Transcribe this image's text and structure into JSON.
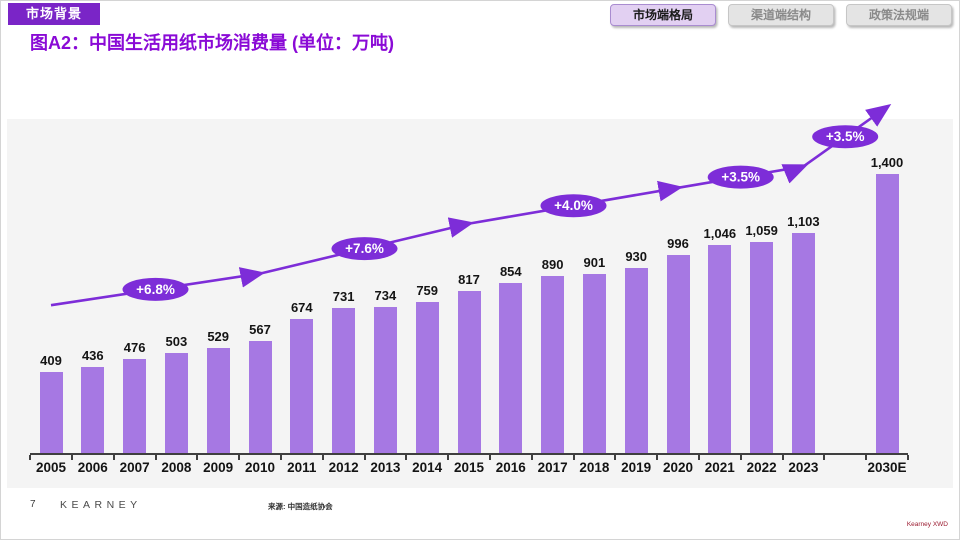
{
  "header": {
    "section_label": "市场背景",
    "tabs": [
      {
        "label": "市场端格局",
        "active": true
      },
      {
        "label": "渠道端结构",
        "active": false
      },
      {
        "label": "政策法规端",
        "active": false
      }
    ]
  },
  "title": "图A2：中国生活用纸市场消费量 (单位：万吨)",
  "chart_data": {
    "type": "bar",
    "title": "中国生活用纸市场消费量",
    "unit": "万吨",
    "categories": [
      "2005",
      "2006",
      "2007",
      "2008",
      "2009",
      "2010",
      "2011",
      "2012",
      "2013",
      "2014",
      "2015",
      "2016",
      "2017",
      "2018",
      "2019",
      "2020",
      "2021",
      "2022",
      "2023",
      "2030E"
    ],
    "values": [
      409,
      436,
      476,
      503,
      529,
      567,
      674,
      731,
      734,
      759,
      817,
      854,
      890,
      901,
      930,
      996,
      1046,
      1059,
      1103,
      1400
    ],
    "value_labels": [
      "409",
      "436",
      "476",
      "503",
      "529",
      "567",
      "674",
      "731",
      "734",
      "759",
      "817",
      "854",
      "890",
      "901",
      "930",
      "996",
      "1,046",
      "1,059",
      "1,103",
      "1,400"
    ],
    "ylim": [
      0,
      1500
    ],
    "grid": false,
    "legend": false,
    "growth_badges": [
      {
        "label": "+6.8%",
        "from": "2005",
        "to": "2010"
      },
      {
        "label": "+7.6%",
        "from": "2010",
        "to": "2015"
      },
      {
        "label": "+4.0%",
        "from": "2015",
        "to": "2020"
      },
      {
        "label": "+3.5%",
        "from": "2020",
        "to": "2023"
      },
      {
        "label": "+3.5%",
        "from": "2023",
        "to": "2030E"
      }
    ],
    "trend_milestones": [
      "2005",
      "2010",
      "2015",
      "2020",
      "2023",
      "2030E"
    ]
  },
  "footer": {
    "page_number": "7",
    "logo": "KEARNEY",
    "source": "来源: 中国造纸协会",
    "watermark": "Kearney XWD"
  },
  "colors": {
    "header_bg": "#7a25c7",
    "title": "#8a0ad6",
    "accent_purple": "#7d2dd8",
    "bar": "#a678e3",
    "panel_bg": "#f4f4f4",
    "active_tab_bg": "#e2d0f2",
    "watermark": "#9b1b30"
  }
}
